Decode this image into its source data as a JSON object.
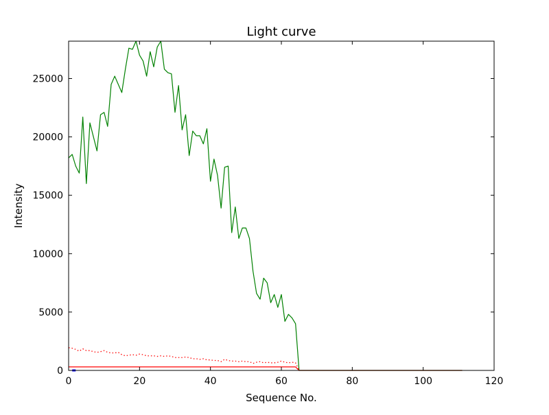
{
  "chart_data": {
    "type": "line",
    "title": "Light curve",
    "xlabel": "Sequence No.",
    "ylabel": "Intensity",
    "xlim": [
      0,
      120
    ],
    "ylim": [
      0,
      28200
    ],
    "xticks": [
      0,
      20,
      40,
      60,
      80,
      100,
      120
    ],
    "yticks": [
      0,
      5000,
      10000,
      15000,
      20000,
      25000
    ],
    "xtick_labels": [
      "0",
      "20",
      "40",
      "60",
      "80",
      "100",
      "120"
    ],
    "ytick_labels": [
      "0",
      "5000",
      "10000",
      "15000",
      "20000",
      "25000"
    ],
    "grid": false,
    "legend": "none",
    "series": [
      {
        "color": "#008000",
        "style": "solid",
        "x": [
          0,
          1,
          2,
          3,
          4,
          5,
          6,
          7,
          8,
          9,
          10,
          11,
          12,
          13,
          14,
          15,
          16,
          17,
          18,
          19,
          20,
          21,
          22,
          23,
          24,
          25,
          26,
          27,
          28,
          29,
          30,
          31,
          32,
          33,
          34,
          35,
          36,
          37,
          38,
          39,
          40,
          41,
          42,
          43,
          44,
          45,
          46,
          47,
          48,
          49,
          50,
          51,
          52,
          53,
          54,
          55,
          56,
          57,
          58,
          59,
          60,
          61,
          62,
          63,
          64,
          65,
          70,
          80,
          90,
          100,
          111
        ],
        "y": [
          18200,
          18500,
          17500,
          16900,
          21700,
          16000,
          21200,
          20000,
          18800,
          21900,
          22100,
          20900,
          24500,
          25200,
          24500,
          23800,
          25800,
          27600,
          27500,
          28200,
          27000,
          26500,
          25200,
          27300,
          26000,
          27700,
          28200,
          25800,
          25500,
          25400,
          22100,
          24400,
          20600,
          21900,
          18400,
          20500,
          20100,
          20100,
          19400,
          20700,
          16200,
          18100,
          16700,
          13900,
          17400,
          17500,
          11800,
          14000,
          11300,
          12200,
          12200,
          11300,
          8500,
          6600,
          6100,
          7900,
          7500,
          5800,
          6500,
          5400,
          6500,
          4200,
          4800,
          4500,
          4000,
          0,
          0,
          0,
          0,
          0,
          0
        ]
      },
      {
        "color": "#ff0000",
        "style": "dotted",
        "x": [
          0,
          1,
          2,
          3,
          4,
          5,
          6,
          7,
          8,
          9,
          10,
          11,
          12,
          13,
          14,
          15,
          16,
          17,
          18,
          19,
          20,
          21,
          22,
          23,
          24,
          25,
          26,
          27,
          28,
          29,
          30,
          31,
          32,
          33,
          34,
          35,
          36,
          37,
          38,
          39,
          40,
          41,
          42,
          43,
          44,
          45,
          46,
          47,
          48,
          49,
          50,
          51,
          52,
          53,
          54,
          55,
          56,
          57,
          58,
          59,
          60,
          61,
          62,
          63,
          64,
          65
        ],
        "y": [
          1950,
          1900,
          1800,
          1650,
          1850,
          1700,
          1700,
          1600,
          1550,
          1600,
          1700,
          1550,
          1500,
          1500,
          1550,
          1350,
          1250,
          1300,
          1350,
          1300,
          1400,
          1350,
          1250,
          1250,
          1250,
          1200,
          1250,
          1200,
          1250,
          1200,
          1100,
          1100,
          1100,
          1150,
          1100,
          1000,
          1000,
          950,
          1000,
          900,
          900,
          850,
          850,
          750,
          950,
          850,
          800,
          800,
          750,
          800,
          750,
          750,
          600,
          700,
          750,
          650,
          700,
          650,
          650,
          700,
          800,
          700,
          650,
          700,
          650,
          0
        ]
      },
      {
        "color": "#ff0000",
        "style": "solid",
        "x": [
          0,
          64,
          65,
          111
        ],
        "y": [
          300,
          300,
          0,
          0
        ]
      }
    ],
    "markers": [
      {
        "color": "#0000ff",
        "x": 1.5,
        "y": 0
      }
    ]
  }
}
